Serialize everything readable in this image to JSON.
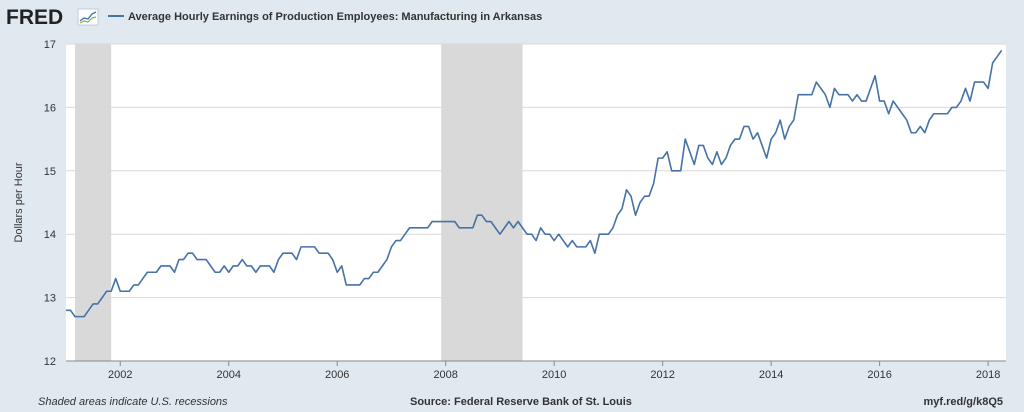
{
  "header": {
    "logo_text": "FRED",
    "series_title": "Average Hourly Earnings of Production Employees: Manufacturing in Arkansas"
  },
  "footer": {
    "note": "Shaded areas indicate U.S. recessions",
    "source": "Source: Federal Reserve Bank of St. Louis",
    "link": "myf.red/g/k8Q5"
  },
  "colors": {
    "line": "#4572a7",
    "recession": "#d9d9d9",
    "plot_bg": "#ffffff",
    "page_bg": "#e1e9f0",
    "grid": "#d8d8d8"
  },
  "chart_data": {
    "type": "line",
    "title": "Average Hourly Earnings of Production Employees: Manufacturing in Arkansas",
    "xlabel": "",
    "ylabel": "Dollars per Hour",
    "xlim": [
      2001.0,
      2018.33
    ],
    "ylim": [
      12,
      17
    ],
    "grid": "horizontal",
    "legend": "top-left",
    "x_ticks": [
      "2002",
      "2004",
      "2006",
      "2008",
      "2010",
      "2012",
      "2014",
      "2016",
      "2018"
    ],
    "y_ticks": [
      "12",
      "13",
      "14",
      "15",
      "16",
      "17"
    ],
    "recessions": [
      {
        "start": "2001-03",
        "end": "2001-11"
      },
      {
        "start": "2007-12",
        "end": "2009-06"
      }
    ],
    "series": [
      {
        "name": "Average Hourly Earnings of Production Employees: Manufacturing in Arkansas",
        "points": [
          [
            "2001-01",
            12.8
          ],
          [
            "2001-02",
            12.8
          ],
          [
            "2001-03",
            12.7
          ],
          [
            "2001-04",
            12.7
          ],
          [
            "2001-05",
            12.7
          ],
          [
            "2001-06",
            12.8
          ],
          [
            "2001-07",
            12.9
          ],
          [
            "2001-08",
            12.9
          ],
          [
            "2001-09",
            13.0
          ],
          [
            "2001-10",
            13.1
          ],
          [
            "2001-11",
            13.1
          ],
          [
            "2001-12",
            13.3
          ],
          [
            "2002-01",
            13.1
          ],
          [
            "2002-02",
            13.1
          ],
          [
            "2002-03",
            13.1
          ],
          [
            "2002-04",
            13.2
          ],
          [
            "2002-05",
            13.2
          ],
          [
            "2002-06",
            13.3
          ],
          [
            "2002-07",
            13.4
          ],
          [
            "2002-08",
            13.4
          ],
          [
            "2002-09",
            13.4
          ],
          [
            "2002-10",
            13.5
          ],
          [
            "2002-11",
            13.5
          ],
          [
            "2002-12",
            13.5
          ],
          [
            "2003-01",
            13.4
          ],
          [
            "2003-02",
            13.6
          ],
          [
            "2003-03",
            13.6
          ],
          [
            "2003-04",
            13.7
          ],
          [
            "2003-05",
            13.7
          ],
          [
            "2003-06",
            13.6
          ],
          [
            "2003-07",
            13.6
          ],
          [
            "2003-08",
            13.6
          ],
          [
            "2003-09",
            13.5
          ],
          [
            "2003-10",
            13.4
          ],
          [
            "2003-11",
            13.4
          ],
          [
            "2003-12",
            13.5
          ],
          [
            "2004-01",
            13.4
          ],
          [
            "2004-02",
            13.5
          ],
          [
            "2004-03",
            13.5
          ],
          [
            "2004-04",
            13.6
          ],
          [
            "2004-05",
            13.5
          ],
          [
            "2004-06",
            13.5
          ],
          [
            "2004-07",
            13.4
          ],
          [
            "2004-08",
            13.5
          ],
          [
            "2004-09",
            13.5
          ],
          [
            "2004-10",
            13.5
          ],
          [
            "2004-11",
            13.4
          ],
          [
            "2004-12",
            13.6
          ],
          [
            "2005-01",
            13.7
          ],
          [
            "2005-02",
            13.7
          ],
          [
            "2005-03",
            13.7
          ],
          [
            "2005-04",
            13.6
          ],
          [
            "2005-05",
            13.8
          ],
          [
            "2005-06",
            13.8
          ],
          [
            "2005-07",
            13.8
          ],
          [
            "2005-08",
            13.8
          ],
          [
            "2005-09",
            13.7
          ],
          [
            "2005-10",
            13.7
          ],
          [
            "2005-11",
            13.7
          ],
          [
            "2005-12",
            13.6
          ],
          [
            "2006-01",
            13.4
          ],
          [
            "2006-02",
            13.5
          ],
          [
            "2006-03",
            13.2
          ],
          [
            "2006-04",
            13.2
          ],
          [
            "2006-05",
            13.2
          ],
          [
            "2006-06",
            13.2
          ],
          [
            "2006-07",
            13.3
          ],
          [
            "2006-08",
            13.3
          ],
          [
            "2006-09",
            13.4
          ],
          [
            "2006-10",
            13.4
          ],
          [
            "2006-11",
            13.5
          ],
          [
            "2006-12",
            13.6
          ],
          [
            "2007-01",
            13.8
          ],
          [
            "2007-02",
            13.9
          ],
          [
            "2007-03",
            13.9
          ],
          [
            "2007-04",
            14.0
          ],
          [
            "2007-05",
            14.1
          ],
          [
            "2007-06",
            14.1
          ],
          [
            "2007-07",
            14.1
          ],
          [
            "2007-08",
            14.1
          ],
          [
            "2007-09",
            14.1
          ],
          [
            "2007-10",
            14.2
          ],
          [
            "2007-11",
            14.2
          ],
          [
            "2007-12",
            14.2
          ],
          [
            "2008-01",
            14.2
          ],
          [
            "2008-02",
            14.2
          ],
          [
            "2008-03",
            14.2
          ],
          [
            "2008-04",
            14.1
          ],
          [
            "2008-05",
            14.1
          ],
          [
            "2008-06",
            14.1
          ],
          [
            "2008-07",
            14.1
          ],
          [
            "2008-08",
            14.3
          ],
          [
            "2008-09",
            14.3
          ],
          [
            "2008-10",
            14.2
          ],
          [
            "2008-11",
            14.2
          ],
          [
            "2008-12",
            14.1
          ],
          [
            "2009-01",
            14.0
          ],
          [
            "2009-02",
            14.1
          ],
          [
            "2009-03",
            14.2
          ],
          [
            "2009-04",
            14.1
          ],
          [
            "2009-05",
            14.2
          ],
          [
            "2009-06",
            14.1
          ],
          [
            "2009-07",
            14.0
          ],
          [
            "2009-08",
            14.0
          ],
          [
            "2009-09",
            13.9
          ],
          [
            "2009-10",
            14.1
          ],
          [
            "2009-11",
            14.0
          ],
          [
            "2009-12",
            14.0
          ],
          [
            "2010-01",
            13.9
          ],
          [
            "2010-02",
            14.0
          ],
          [
            "2010-03",
            13.9
          ],
          [
            "2010-04",
            13.8
          ],
          [
            "2010-05",
            13.9
          ],
          [
            "2010-06",
            13.8
          ],
          [
            "2010-07",
            13.8
          ],
          [
            "2010-08",
            13.8
          ],
          [
            "2010-09",
            13.9
          ],
          [
            "2010-10",
            13.7
          ],
          [
            "2010-11",
            14.0
          ],
          [
            "2010-12",
            14.0
          ],
          [
            "2011-01",
            14.0
          ],
          [
            "2011-02",
            14.1
          ],
          [
            "2011-03",
            14.3
          ],
          [
            "2011-04",
            14.4
          ],
          [
            "2011-05",
            14.7
          ],
          [
            "2011-06",
            14.6
          ],
          [
            "2011-07",
            14.3
          ],
          [
            "2011-08",
            14.5
          ],
          [
            "2011-09",
            14.6
          ],
          [
            "2011-10",
            14.6
          ],
          [
            "2011-11",
            14.8
          ],
          [
            "2011-12",
            15.2
          ],
          [
            "2012-01",
            15.2
          ],
          [
            "2012-02",
            15.3
          ],
          [
            "2012-03",
            15.0
          ],
          [
            "2012-04",
            15.0
          ],
          [
            "2012-05",
            15.0
          ],
          [
            "2012-06",
            15.5
          ],
          [
            "2012-07",
            15.3
          ],
          [
            "2012-08",
            15.1
          ],
          [
            "2012-09",
            15.4
          ],
          [
            "2012-10",
            15.4
          ],
          [
            "2012-11",
            15.2
          ],
          [
            "2012-12",
            15.1
          ],
          [
            "2013-01",
            15.3
          ],
          [
            "2013-02",
            15.1
          ],
          [
            "2013-03",
            15.2
          ],
          [
            "2013-04",
            15.4
          ],
          [
            "2013-05",
            15.5
          ],
          [
            "2013-06",
            15.5
          ],
          [
            "2013-07",
            15.7
          ],
          [
            "2013-08",
            15.7
          ],
          [
            "2013-09",
            15.5
          ],
          [
            "2013-10",
            15.6
          ],
          [
            "2013-11",
            15.4
          ],
          [
            "2013-12",
            15.2
          ],
          [
            "2014-01",
            15.5
          ],
          [
            "2014-02",
            15.6
          ],
          [
            "2014-03",
            15.8
          ],
          [
            "2014-04",
            15.5
          ],
          [
            "2014-05",
            15.7
          ],
          [
            "2014-06",
            15.8
          ],
          [
            "2014-07",
            16.2
          ],
          [
            "2014-08",
            16.2
          ],
          [
            "2014-09",
            16.2
          ],
          [
            "2014-10",
            16.2
          ],
          [
            "2014-11",
            16.4
          ],
          [
            "2014-12",
            16.3
          ],
          [
            "2015-01",
            16.2
          ],
          [
            "2015-02",
            16.0
          ],
          [
            "2015-03",
            16.3
          ],
          [
            "2015-04",
            16.2
          ],
          [
            "2015-05",
            16.2
          ],
          [
            "2015-06",
            16.2
          ],
          [
            "2015-07",
            16.1
          ],
          [
            "2015-08",
            16.2
          ],
          [
            "2015-09",
            16.1
          ],
          [
            "2015-10",
            16.1
          ],
          [
            "2015-11",
            16.3
          ],
          [
            "2015-12",
            16.5
          ],
          [
            "2016-01",
            16.1
          ],
          [
            "2016-02",
            16.1
          ],
          [
            "2016-03",
            15.9
          ],
          [
            "2016-04",
            16.1
          ],
          [
            "2016-05",
            16.0
          ],
          [
            "2016-06",
            15.9
          ],
          [
            "2016-07",
            15.8
          ],
          [
            "2016-08",
            15.6
          ],
          [
            "2016-09",
            15.6
          ],
          [
            "2016-10",
            15.7
          ],
          [
            "2016-11",
            15.6
          ],
          [
            "2016-12",
            15.8
          ],
          [
            "2017-01",
            15.9
          ],
          [
            "2017-02",
            15.9
          ],
          [
            "2017-03",
            15.9
          ],
          [
            "2017-04",
            15.9
          ],
          [
            "2017-05",
            16.0
          ],
          [
            "2017-06",
            16.0
          ],
          [
            "2017-07",
            16.1
          ],
          [
            "2017-08",
            16.3
          ],
          [
            "2017-09",
            16.1
          ],
          [
            "2017-10",
            16.4
          ],
          [
            "2017-11",
            16.4
          ],
          [
            "2017-12",
            16.4
          ],
          [
            "2018-01",
            16.3
          ],
          [
            "2018-02",
            16.7
          ],
          [
            "2018-03",
            16.8
          ],
          [
            "2018-04",
            16.9
          ]
        ]
      }
    ]
  }
}
